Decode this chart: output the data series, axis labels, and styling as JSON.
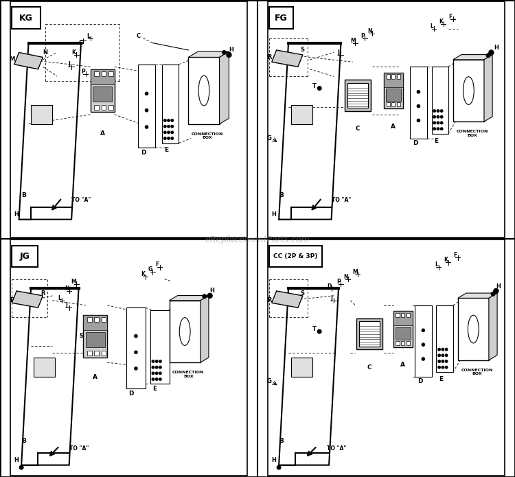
{
  "bg": "#ffffff",
  "line_color": "#000000",
  "watermark": "eReplacementParts.com",
  "panels": [
    "KG",
    "FG",
    "JG",
    "CC (2P & 3P)"
  ]
}
